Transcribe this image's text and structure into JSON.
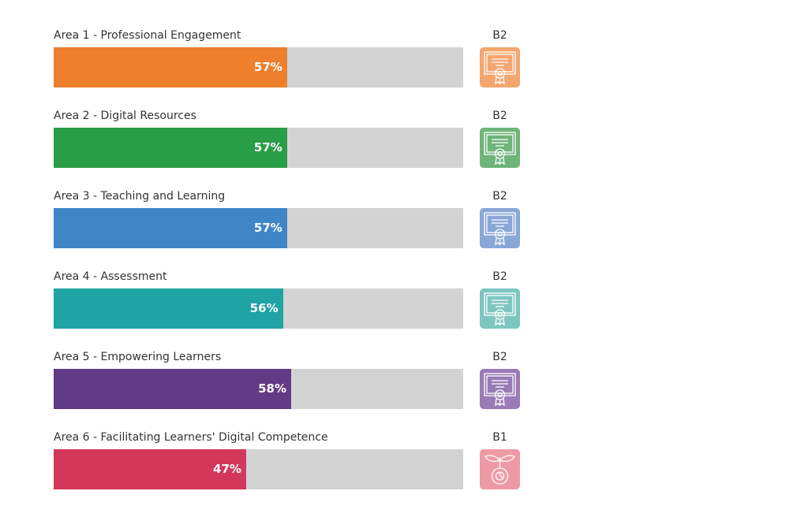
{
  "chart_data": {
    "type": "bar",
    "orientation": "horizontal",
    "xlim": [
      0,
      100
    ],
    "categories": [
      "Area 1 - Professional Engagement",
      "Area 2 - Digital Resources",
      "Area 3 - Teaching and Learning",
      "Area 4 - Assessment",
      "Area 5 - Empowering Learners",
      "Area 6 - Facilitating Learners' Digital Competence"
    ],
    "values": [
      57,
      57,
      57,
      56,
      58,
      47
    ],
    "value_labels": [
      "57%",
      "57%",
      "57%",
      "56%",
      "58%",
      "47%"
    ],
    "levels": [
      "B2",
      "B2",
      "B2",
      "B2",
      "B2",
      "B1"
    ],
    "level_icons": [
      "certificate-icon",
      "certificate-icon",
      "certificate-icon",
      "certificate-icon",
      "certificate-icon",
      "sprout-gear-icon"
    ],
    "colors": [
      "#ee7f2d",
      "#2a9d47",
      "#3f86c7",
      "#1fa3a3",
      "#623a85",
      "#d3385a"
    ],
    "icon_colors": [
      "#f5a56e",
      "#6fb47a",
      "#88a7d7",
      "#7ec6c0",
      "#9b7bb6",
      "#ee9aa5"
    ],
    "track_color": "#d3d3d3"
  }
}
